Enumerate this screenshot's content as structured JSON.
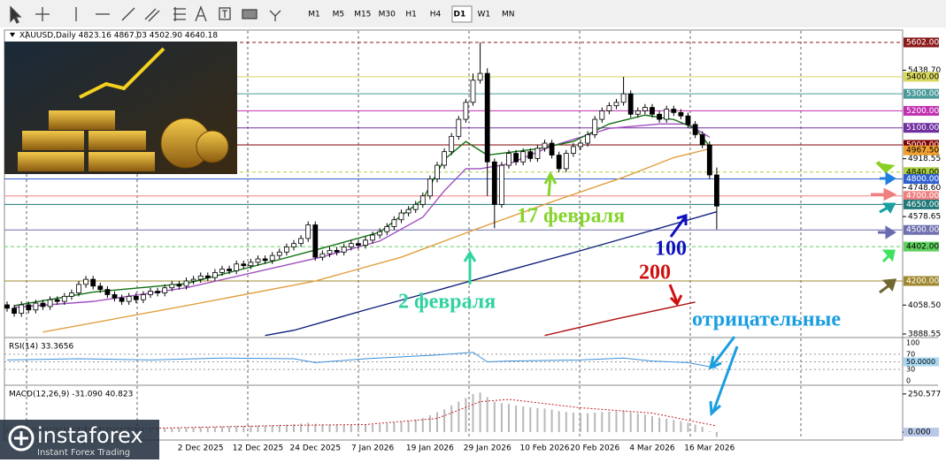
{
  "toolbar": {
    "timeframes": [
      "M1",
      "M5",
      "M15",
      "M30",
      "H1",
      "H4",
      "D1",
      "W1",
      "MN"
    ],
    "active": "D1"
  },
  "chart_data": {
    "type": "candlestick",
    "title": "XAUUSD,Daily  4823.16 4867.03 4502.90 4640.18",
    "categories": [
      null,
      null,
      null,
      null,
      null,
      null,
      null,
      null,
      null,
      null,
      null,
      null,
      null,
      null,
      null,
      null,
      null,
      null,
      null,
      null,
      null,
      null,
      null,
      null,
      null,
      null,
      null,
      "2 Dec 2025",
      null,
      null,
      null,
      null,
      null,
      null,
      null,
      "12 Dec 2025",
      null,
      null,
      null,
      null,
      null,
      null,
      null,
      "24 Dec 2025",
      null,
      null,
      null,
      null,
      null,
      null,
      null,
      "7 Jan 2026",
      null,
      null,
      null,
      null,
      null,
      null,
      null,
      "19 Jan 2026",
      null,
      null,
      null,
      null,
      null,
      null,
      null,
      "29 Jan 2026",
      null,
      null,
      null,
      null,
      null,
      null,
      null,
      "10 Feb 2026",
      null,
      null,
      null,
      null,
      null,
      null,
      "20 Feb 2026",
      null,
      null,
      null,
      null,
      null,
      null,
      null,
      "4 Mar 2026",
      null,
      null,
      null,
      null,
      null,
      null,
      null,
      "16 Mar 2026",
      null
    ],
    "open": [
      4060,
      4040,
      4010,
      4060,
      4030,
      4070,
      4050,
      4090,
      4080,
      4110,
      4130,
      4180,
      4210,
      4170,
      4150,
      4120,
      4100,
      4080,
      4110,
      4090,
      4120,
      4140,
      4130,
      4160,
      4180,
      4170,
      4200,
      4210,
      4230,
      4220,
      4250,
      4270,
      4260,
      4300,
      4290,
      4310,
      4330,
      4320,
      4350,
      4370,
      4400,
      4420,
      4450,
      4530,
      4340,
      4360,
      4380,
      4370,
      4400,
      4420,
      4410,
      4440,
      4470,
      4490,
      4520,
      4560,
      4600,
      4620,
      4650,
      4700,
      4800,
      4880,
      4960,
      5050,
      5150,
      5250,
      5380,
      5420,
      4900,
      4650,
      4880,
      4950,
      4900,
      4960,
      4920,
      4980,
      5010,
      4940,
      4860,
      4950,
      4990,
      5010,
      5060,
      5150,
      5200,
      5230,
      5250,
      5300,
      5180,
      5200,
      5220,
      5180,
      5150,
      5210,
      5190,
      5170,
      5120,
      5060,
      5000,
      4823.16
    ],
    "high": [
      4080,
      4060,
      4080,
      4080,
      4090,
      4090,
      4110,
      4110,
      4130,
      4150,
      4200,
      4230,
      4230,
      4190,
      4170,
      4140,
      4120,
      4130,
      4130,
      4140,
      4160,
      4160,
      4180,
      4200,
      4200,
      4220,
      4230,
      4250,
      4250,
      4270,
      4290,
      4290,
      4320,
      4320,
      4330,
      4350,
      4350,
      4370,
      4390,
      4420,
      4440,
      4470,
      4550,
      4550,
      4380,
      4400,
      4400,
      4420,
      4440,
      4440,
      4460,
      4490,
      4510,
      4540,
      4580,
      4620,
      4640,
      4670,
      4720,
      4820,
      4900,
      4980,
      5070,
      5170,
      5270,
      5420,
      5602,
      5450,
      4920,
      4900,
      4970,
      4970,
      4980,
      4980,
      5000,
      5030,
      5030,
      4960,
      4970,
      5010,
      5030,
      5080,
      5170,
      5220,
      5250,
      5270,
      5400,
      5320,
      5220,
      5240,
      5240,
      5200,
      5230,
      5230,
      5210,
      5190,
      5140,
      5080,
      5020,
      4867.03
    ],
    "low": [
      4020,
      3990,
      3990,
      4010,
      4010,
      4030,
      4030,
      4060,
      4060,
      4090,
      4110,
      4160,
      4150,
      4130,
      4100,
      4080,
      4060,
      4060,
      4070,
      4070,
      4100,
      4110,
      4110,
      4140,
      4150,
      4150,
      4180,
      4190,
      4200,
      4200,
      4230,
      4240,
      4240,
      4270,
      4270,
      4290,
      4300,
      4300,
      4330,
      4350,
      4380,
      4400,
      4430,
      4320,
      4320,
      4340,
      4350,
      4350,
      4380,
      4390,
      4390,
      4420,
      4450,
      4470,
      4500,
      4540,
      4580,
      4600,
      4630,
      4680,
      4780,
      4860,
      4940,
      5030,
      5130,
      5230,
      5360,
      4700,
      4510,
      4630,
      4860,
      4880,
      4880,
      4900,
      4900,
      4960,
      4920,
      4840,
      4840,
      4930,
      4970,
      4990,
      5040,
      5130,
      5180,
      5210,
      5230,
      5160,
      5160,
      5180,
      5160,
      5130,
      5130,
      5170,
      5150,
      5100,
      5040,
      4980,
      4800,
      4502.9
    ],
    "close": [
      4040,
      4010,
      4060,
      4030,
      4070,
      4050,
      4090,
      4080,
      4110,
      4130,
      4180,
      4210,
      4170,
      4150,
      4120,
      4100,
      4080,
      4110,
      4090,
      4120,
      4140,
      4130,
      4160,
      4180,
      4170,
      4200,
      4210,
      4230,
      4220,
      4250,
      4270,
      4260,
      4300,
      4290,
      4310,
      4330,
      4320,
      4350,
      4370,
      4400,
      4420,
      4450,
      4530,
      4340,
      4360,
      4380,
      4370,
      4400,
      4420,
      4410,
      4440,
      4470,
      4490,
      4520,
      4560,
      4600,
      4620,
      4650,
      4700,
      4800,
      4880,
      4960,
      5050,
      5150,
      5250,
      5380,
      5420,
      4900,
      4650,
      4880,
      4950,
      4900,
      4960,
      4920,
      4980,
      5010,
      4940,
      4860,
      4950,
      4990,
      5010,
      5060,
      5150,
      5200,
      5230,
      5250,
      5300,
      5180,
      5200,
      5220,
      5180,
      5150,
      5210,
      5190,
      5170,
      5120,
      5060,
      5000,
      4823.16,
      4640.18
    ],
    "ylim": [
      3873,
      5654
    ],
    "yticks": [
      {
        "value": 5438.7,
        "label": "5438.70"
      },
      {
        "value": 4918.55,
        "label": "4918.55"
      },
      {
        "value": 4748.6,
        "label": "4748.60"
      },
      {
        "value": 4578.65,
        "label": "4578.65"
      },
      {
        "value": 4058.5,
        "label": "4058.50"
      },
      {
        "value": 3888.55,
        "label": "3888.55"
      }
    ],
    "levels": [
      {
        "value": 5602,
        "label": "5602.00",
        "color": "#8b1a1a",
        "text_color": "#ffffff",
        "dash": true,
        "line": true
      },
      {
        "value": 5400,
        "label": "5400.00",
        "color": "#d8d860",
        "text_color": "#000000",
        "dash": false,
        "line": true
      },
      {
        "value": 5300,
        "label": "5300.00",
        "color": "#4a9a9a",
        "text_color": "#ffffff",
        "dash": false,
        "line": true
      },
      {
        "value": 5200,
        "label": "5200.00",
        "color": "#c030b0",
        "text_color": "#ffffff",
        "dash": false,
        "line": true
      },
      {
        "value": 5100,
        "label": "5100.00",
        "color": "#7030a0",
        "text_color": "#ffffff",
        "dash": false,
        "line": true
      },
      {
        "value": 5000,
        "label": "5000.00",
        "color": "#800000",
        "text_color": "#ffffff",
        "dash": false,
        "line": true
      },
      {
        "value": 4967.5,
        "label": "4967.50",
        "color": "#f0a030",
        "text_color": "#000000",
        "dash": false,
        "line": false
      },
      {
        "value": 4840,
        "label": "4840.00",
        "color": "#a8d040",
        "text_color": "#000000",
        "dash": true,
        "line": true
      },
      {
        "value": 4800,
        "label": "4800.00",
        "color": "#3060d0",
        "text_color": "#ffffff",
        "dash": false,
        "line": true
      },
      {
        "value": 4700,
        "label": "4700.00",
        "color": "#f08080",
        "text_color": "#ffffff",
        "dash": false,
        "line": true
      },
      {
        "value": 4650,
        "label": "4650.00",
        "color": "#207878",
        "text_color": "#ffffff",
        "dash": false,
        "line": true
      },
      {
        "value": 4500,
        "label": "4500.00",
        "color": "#7070b0",
        "text_color": "#ffffff",
        "dash": false,
        "line": true
      },
      {
        "value": 4402,
        "label": "4402.00",
        "color": "#60d060",
        "text_color": "#000000",
        "dash": true,
        "line": true
      },
      {
        "value": 4200,
        "label": "4200.00",
        "color": "#a08830",
        "text_color": "#ffffff",
        "dash": false,
        "line": true
      }
    ],
    "overlays": [
      {
        "color": "#10207a",
        "x": [
          36,
          40,
          50,
          60,
          70,
          80,
          90,
          99
        ],
        "values": [
          3880,
          3910,
          4030,
          4145,
          4263,
          4378,
          4498,
          4607
        ]
      },
      {
        "color": "#b01010",
        "x": [
          75,
          85,
          96
        ],
        "values": [
          3880,
          3977,
          4076
        ]
      },
      {
        "color": "#e0a040",
        "x": [
          5,
          25,
          43,
          55,
          65,
          76,
          86,
          93,
          98
        ],
        "values": [
          3900,
          4055,
          4200,
          4340,
          4498,
          4665,
          4810,
          4925,
          4977
        ]
      },
      {
        "color": "#a050c0",
        "x": [
          1,
          12,
          25,
          37,
          44,
          52,
          58,
          61,
          64,
          66,
          70,
          76,
          84,
          91,
          95,
          98
        ],
        "values": [
          4045,
          4080,
          4160,
          4275,
          4342,
          4435,
          4575,
          4730,
          4860,
          4860,
          4888,
          4993,
          5097,
          5123,
          5123,
          5045
        ]
      },
      {
        "color": "#107010",
        "x": [
          1,
          12,
          25,
          37,
          44,
          52,
          58,
          61,
          64,
          67,
          74,
          79,
          84,
          89,
          93,
          96,
          98
        ],
        "values": [
          4055,
          4135,
          4185,
          4315,
          4393,
          4487,
          4680,
          4914,
          5020,
          4940,
          4977,
          5020,
          5123,
          5175,
          5149,
          5097,
          4993
        ]
      }
    ],
    "annotations": [
      {
        "text": "2 февраля",
        "color": "#2ed3a0"
      },
      {
        "text": "17 февраля",
        "color": "#86d42c"
      },
      {
        "text": "100",
        "color": "#1010c0"
      },
      {
        "text": "200",
        "color": "#d01010"
      },
      {
        "text": "отрицательные",
        "color": "#1a9ee0"
      }
    ],
    "rsi": {
      "title": "RSI(14) 33.3656",
      "color": "#3a8fd8",
      "ylim": [
        0,
        100
      ],
      "yticks": [
        100,
        70,
        {
          "value": 50,
          "label": "50.0000"
        },
        30,
        0
      ],
      "x": [
        0,
        10,
        20,
        30,
        40,
        43,
        50,
        60,
        65,
        67,
        70,
        80,
        86,
        90,
        95,
        99
      ],
      "values": [
        55,
        58,
        55,
        60,
        58,
        48,
        58,
        68,
        75,
        50,
        52,
        55,
        60,
        52,
        48,
        33.3656
      ]
    },
    "macd": {
      "title": "MACD(12,26,9) -31.090 40.823",
      "ylim": [
        -46,
        302
      ],
      "yticks": [
        250.577,
        {
          "value": 0,
          "label": "0.000"
        }
      ],
      "values": [
        20,
        18,
        22,
        20,
        24,
        22,
        25,
        25,
        28,
        30,
        35,
        40,
        38,
        34,
        30,
        26,
        22,
        22,
        20,
        22,
        24,
        24,
        26,
        28,
        28,
        30,
        32,
        34,
        34,
        36,
        38,
        38,
        40,
        40,
        42,
        44,
        44,
        46,
        48,
        50,
        52,
        56,
        62,
        55,
        52,
        50,
        48,
        48,
        48,
        46,
        48,
        50,
        52,
        56,
        62,
        68,
        74,
        82,
        92,
        110,
        130,
        150,
        175,
        200,
        225,
        250,
        260,
        230,
        200,
        190,
        185,
        175,
        170,
        162,
        158,
        155,
        148,
        138,
        132,
        128,
        125,
        124,
        128,
        132,
        135,
        138,
        142,
        130,
        122,
        115,
        105,
        95,
        88,
        80,
        72,
        62,
        50,
        35,
        5,
        -31.09
      ],
      "signal": {
        "color": "#c02020",
        "x": [
          0,
          20,
          40,
          50,
          60,
          66,
          70,
          80,
          90,
          99
        ],
        "values": [
          25,
          25,
          45,
          50,
          90,
          200,
          215,
          160,
          125,
          40.823
        ]
      }
    }
  },
  "logo": {
    "name": "instaforex",
    "tagline": "Instant Forex Trading"
  }
}
